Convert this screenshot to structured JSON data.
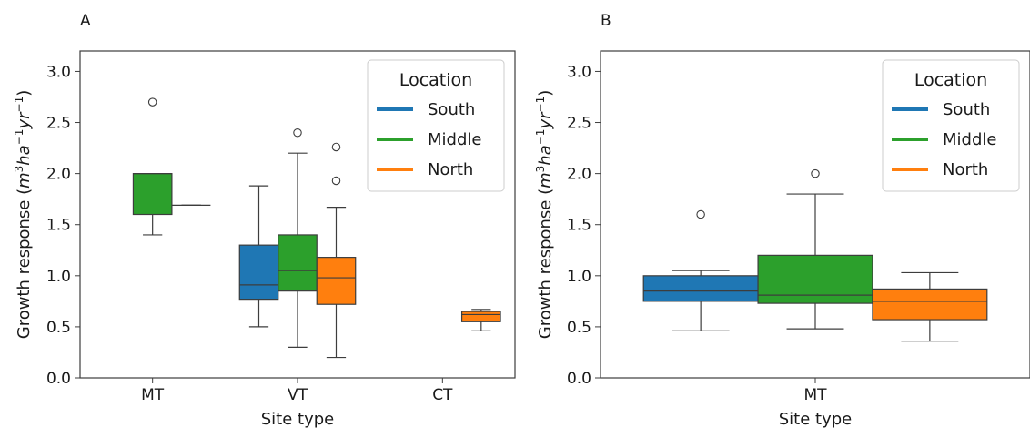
{
  "chart_data": [
    {
      "type": "box",
      "panel_label": "A",
      "xlabel": "Site type",
      "ylabel": "Growth response (m³ha⁻¹yr⁻¹)",
      "ylim": [
        0,
        3.2
      ],
      "yticks": [
        "0.0",
        "0.5",
        "1.0",
        "1.5",
        "2.0",
        "2.5",
        "3.0"
      ],
      "categories": [
        "MT",
        "VT",
        "CT"
      ],
      "legend": {
        "title": "Location",
        "position": "top-right",
        "entries": [
          {
            "label": "South",
            "color": "#1f77b4"
          },
          {
            "label": "Middle",
            "color": "#2ca02c"
          },
          {
            "label": "North",
            "color": "#ff7f0e"
          }
        ]
      },
      "series": [
        {
          "name": "South",
          "color": "#1f77b4",
          "boxes": [
            null,
            {
              "whislo": 0.5,
              "q1": 0.77,
              "med": 0.91,
              "q3": 1.3,
              "whishi": 1.88,
              "fliers": []
            },
            null
          ]
        },
        {
          "name": "Middle",
          "color": "#2ca02c",
          "boxes": [
            {
              "whislo": 1.4,
              "q1": 1.6,
              "med": 2.0,
              "q3": 2.0,
              "whishi": 2.0,
              "fliers": [
                2.7
              ]
            },
            {
              "whislo": 0.3,
              "q1": 0.85,
              "med": 1.05,
              "q3": 1.4,
              "whishi": 2.2,
              "fliers": [
                2.4
              ]
            },
            null
          ]
        },
        {
          "name": "North",
          "color": "#ff7f0e",
          "boxes": [
            {
              "whislo": 1.69,
              "q1": 1.69,
              "med": 1.69,
              "q3": 1.69,
              "whishi": 1.69,
              "fliers": []
            },
            {
              "whislo": 0.2,
              "q1": 0.72,
              "med": 0.98,
              "q3": 1.18,
              "whishi": 1.67,
              "fliers": [
                1.93,
                2.26
              ]
            },
            {
              "whislo": 0.46,
              "q1": 0.55,
              "med": 0.62,
              "q3": 0.65,
              "whishi": 0.67,
              "fliers": []
            }
          ]
        }
      ]
    },
    {
      "type": "box",
      "panel_label": "B",
      "xlabel": "Site type",
      "ylabel": "Growth response (m³ha⁻¹yr⁻¹)",
      "ylim": [
        0,
        3.2
      ],
      "yticks": [
        "0.0",
        "0.5",
        "1.0",
        "1.5",
        "2.0",
        "2.5",
        "3.0"
      ],
      "categories": [
        "MT"
      ],
      "legend": {
        "title": "Location",
        "position": "top-right",
        "entries": [
          {
            "label": "South",
            "color": "#1f77b4"
          },
          {
            "label": "Middle",
            "color": "#2ca02c"
          },
          {
            "label": "North",
            "color": "#ff7f0e"
          }
        ]
      },
      "series": [
        {
          "name": "South",
          "color": "#1f77b4",
          "boxes": [
            {
              "whislo": 0.46,
              "q1": 0.75,
              "med": 0.85,
              "q3": 1.0,
              "whishi": 1.05,
              "fliers": [
                1.6
              ]
            }
          ]
        },
        {
          "name": "Middle",
          "color": "#2ca02c",
          "boxes": [
            {
              "whislo": 0.48,
              "q1": 0.73,
              "med": 0.81,
              "q3": 1.2,
              "whishi": 1.8,
              "fliers": [
                2.0
              ]
            }
          ]
        },
        {
          "name": "North",
          "color": "#ff7f0e",
          "boxes": [
            {
              "whislo": 0.36,
              "q1": 0.57,
              "med": 0.75,
              "q3": 0.87,
              "whishi": 1.03,
              "fliers": []
            }
          ]
        }
      ]
    }
  ]
}
